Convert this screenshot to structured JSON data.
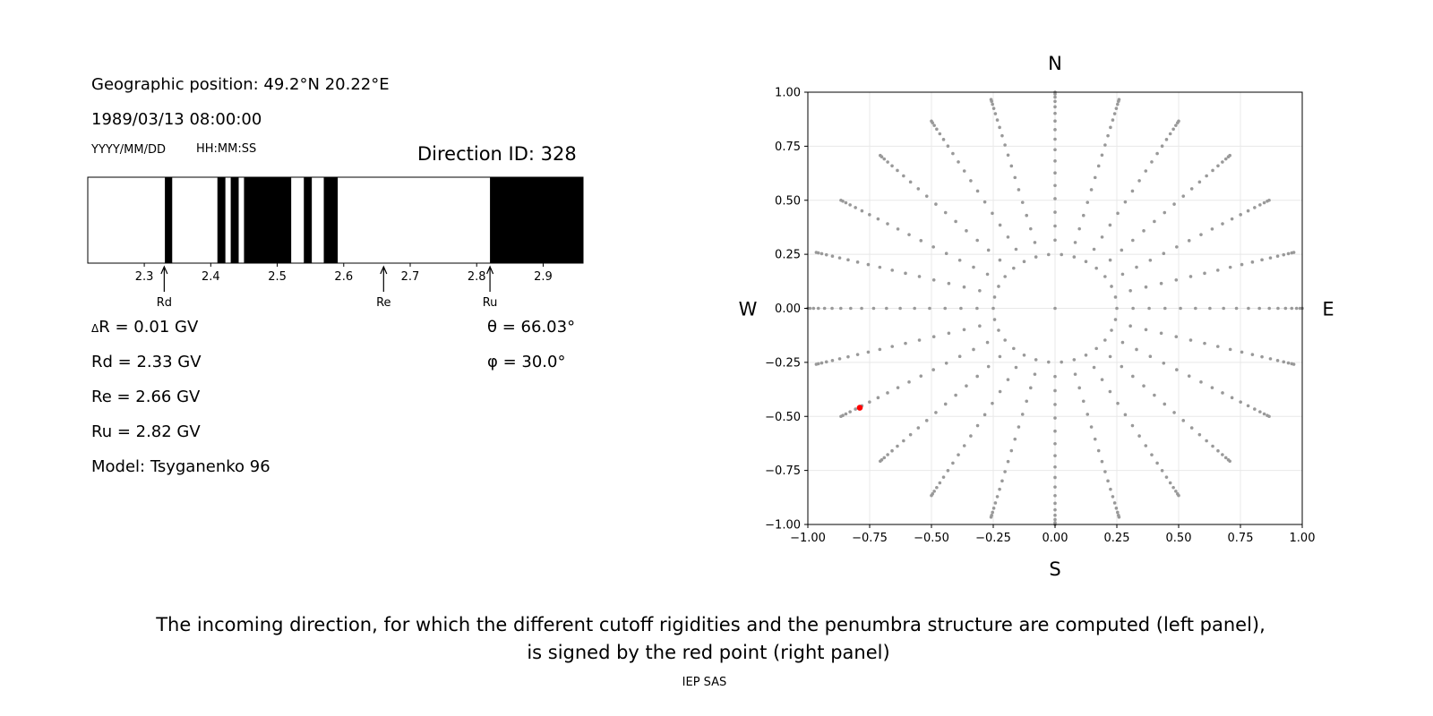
{
  "info": {
    "geo_position": "Geographic position: 49.2°N 20.22°E",
    "datetime": "1989/03/13 08:00:00",
    "date_format": "YYYY/MM/DD",
    "time_format": "HH:MM:SS",
    "direction_id": "Direction ID: 328"
  },
  "params": {
    "delta_r": "R = 0.01 GV",
    "delta_symbol": "Δ",
    "rd": "Rd = 2.33 GV",
    "re": "Re = 2.66 GV",
    "ru": "Ru = 2.82 GV",
    "model": "Model: Tsyganenko 96",
    "theta": "θ = 66.03°",
    "phi": "φ = 30.0°"
  },
  "caption": {
    "line1": "The incoming direction, for which the different cutoff rigidities and the penumbra structure are computed (left panel),",
    "line2": "is signed by the red point (right panel)"
  },
  "footer": "IEP SAS",
  "chart_data": [
    {
      "type": "bar",
      "name": "penumbra",
      "xlim": [
        2.215,
        2.96
      ],
      "xticks": [
        2.3,
        2.4,
        2.5,
        2.6,
        2.7,
        2.8,
        2.9
      ],
      "xtick_labels": [
        "2.3",
        "2.4",
        "2.5",
        "2.6",
        "2.7",
        "2.8",
        "2.9"
      ],
      "forbidden_bands": [
        [
          2.331,
          2.342
        ],
        [
          2.41,
          2.422
        ],
        [
          2.43,
          2.442
        ],
        [
          2.45,
          2.521
        ],
        [
          2.54,
          2.552
        ],
        [
          2.57,
          2.591
        ],
        [
          2.82,
          2.96
        ]
      ],
      "markers": [
        {
          "label": "Rd",
          "x": 2.33
        },
        {
          "label": "Re",
          "x": 2.66
        },
        {
          "label": "Ru",
          "x": 2.82
        }
      ],
      "colors": {
        "forbidden": "#000000",
        "allowed": "#ffffff"
      }
    },
    {
      "type": "scatter",
      "name": "directions",
      "xlim": [
        -1.0,
        1.0
      ],
      "ylim": [
        -1.0,
        1.0
      ],
      "xticks": [
        -1.0,
        -0.75,
        -0.5,
        -0.25,
        0.0,
        0.25,
        0.5,
        0.75,
        1.0
      ],
      "yticks": [
        -1.0,
        -0.75,
        -0.5,
        -0.25,
        0.0,
        0.25,
        0.5,
        0.75,
        1.0
      ],
      "xtick_labels": [
        "−1.00",
        "−0.75",
        "−0.50",
        "−0.25",
        "0.00",
        "0.25",
        "0.50",
        "0.75",
        "1.00"
      ],
      "ytick_labels": [
        "−1.00",
        "−0.75",
        "−0.50",
        "−0.25",
        "0.00",
        "0.25",
        "0.50",
        "0.75",
        "1.00"
      ],
      "grid": true,
      "compass": {
        "north": "N",
        "south": "S",
        "west": "W",
        "east": "E"
      },
      "center": [
        0.0,
        0.0
      ],
      "inner_ring": {
        "radius": 0.25,
        "count": 30
      },
      "rays": {
        "count": 24,
        "r_min": 0.25,
        "r_max": 1.0,
        "zenith_step_deg": 5,
        "zenith_max_deg": 85
      },
      "highlight": {
        "x": -0.79,
        "y": -0.46,
        "color": "#ff0000"
      },
      "colors": {
        "points": "#999999",
        "highlight": "#ff0000",
        "grid": "#e8e8e8"
      }
    }
  ]
}
